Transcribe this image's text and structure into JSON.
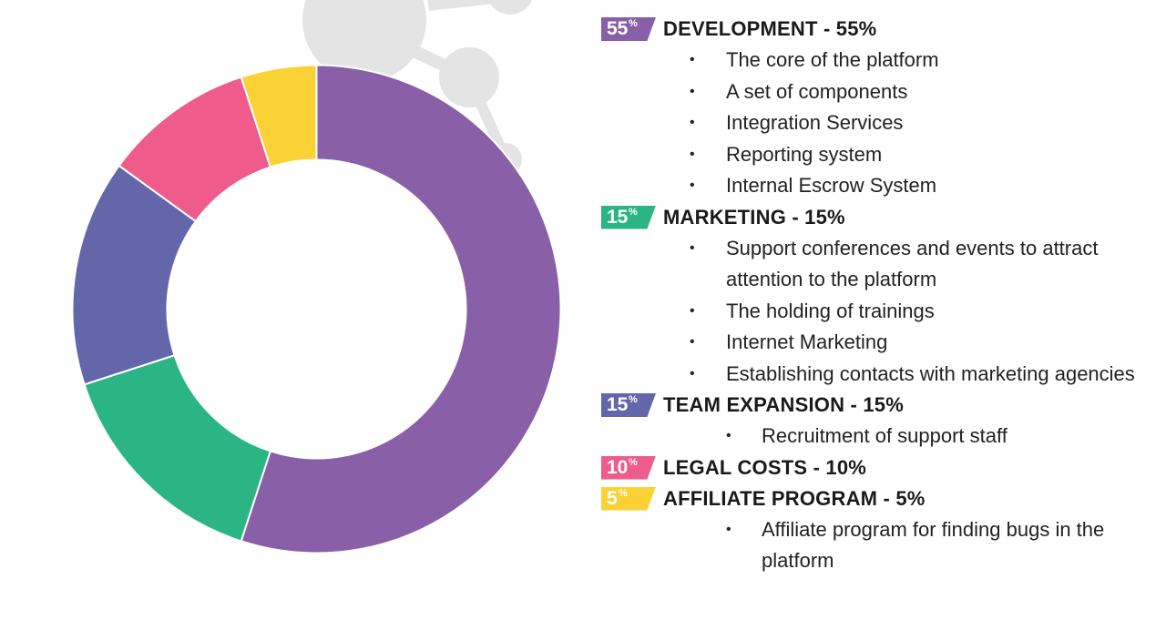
{
  "colors": {
    "development": "#8960a7",
    "marketing": "#2bb585",
    "team_expansion": "#6466aa",
    "legal_costs": "#ef5b8b",
    "affiliate_program": "#fbd235",
    "decor": "#e4e4e4"
  },
  "chart_data": {
    "type": "pie",
    "subtype": "donut",
    "categories": [
      "DEVELOPMENT",
      "MARKETING",
      "TEAM EXPANSION",
      "LEGAL COSTS",
      "AFFILIATE PROGRAM"
    ],
    "values": [
      55,
      15,
      15,
      10,
      5
    ],
    "unit": "%",
    "colors": [
      "#8960a7",
      "#2bb585",
      "#6466aa",
      "#ef5b8b",
      "#fbd235"
    ],
    "start": "top",
    "direction": "clockwise",
    "legend_position": "right"
  },
  "legend": {
    "items": [
      {
        "key": "development",
        "badge_number": "55",
        "badge_suffix": "%",
        "title": "DEVELOPMENT - 55%",
        "bullet_style": "indent-a",
        "bullets": [
          "The core of the platform",
          "A set of components",
          "Integration Services",
          "Reporting system",
          "Internal Escrow System"
        ]
      },
      {
        "key": "marketing",
        "badge_number": "15",
        "badge_suffix": "%",
        "title": "MARKETING - 15%",
        "bullet_style": "indent-a",
        "bullets": [
          "Support conferences and events to attract attention to the platform",
          "The holding of trainings",
          "Internet Marketing",
          "Establishing contacts with marketing agencies"
        ]
      },
      {
        "key": "team_expansion",
        "badge_number": "15",
        "badge_suffix": "%",
        "title": "TEAM EXPANSION - 15%",
        "bullet_style": "indent-b",
        "bullets": [
          "Recruitment of support staff"
        ]
      },
      {
        "key": "legal_costs",
        "badge_number": "10",
        "badge_suffix": "%",
        "title": "LEGAL COSTS - 10%",
        "bullet_style": "indent-b",
        "bullets": []
      },
      {
        "key": "affiliate_program",
        "badge_number": "5",
        "badge_suffix": "%",
        "title": "AFFILIATE PROGRAM - 5%",
        "bullet_style": "indent-b",
        "bullets": [
          "Affiliate program for finding bugs in the platform"
        ]
      }
    ]
  }
}
